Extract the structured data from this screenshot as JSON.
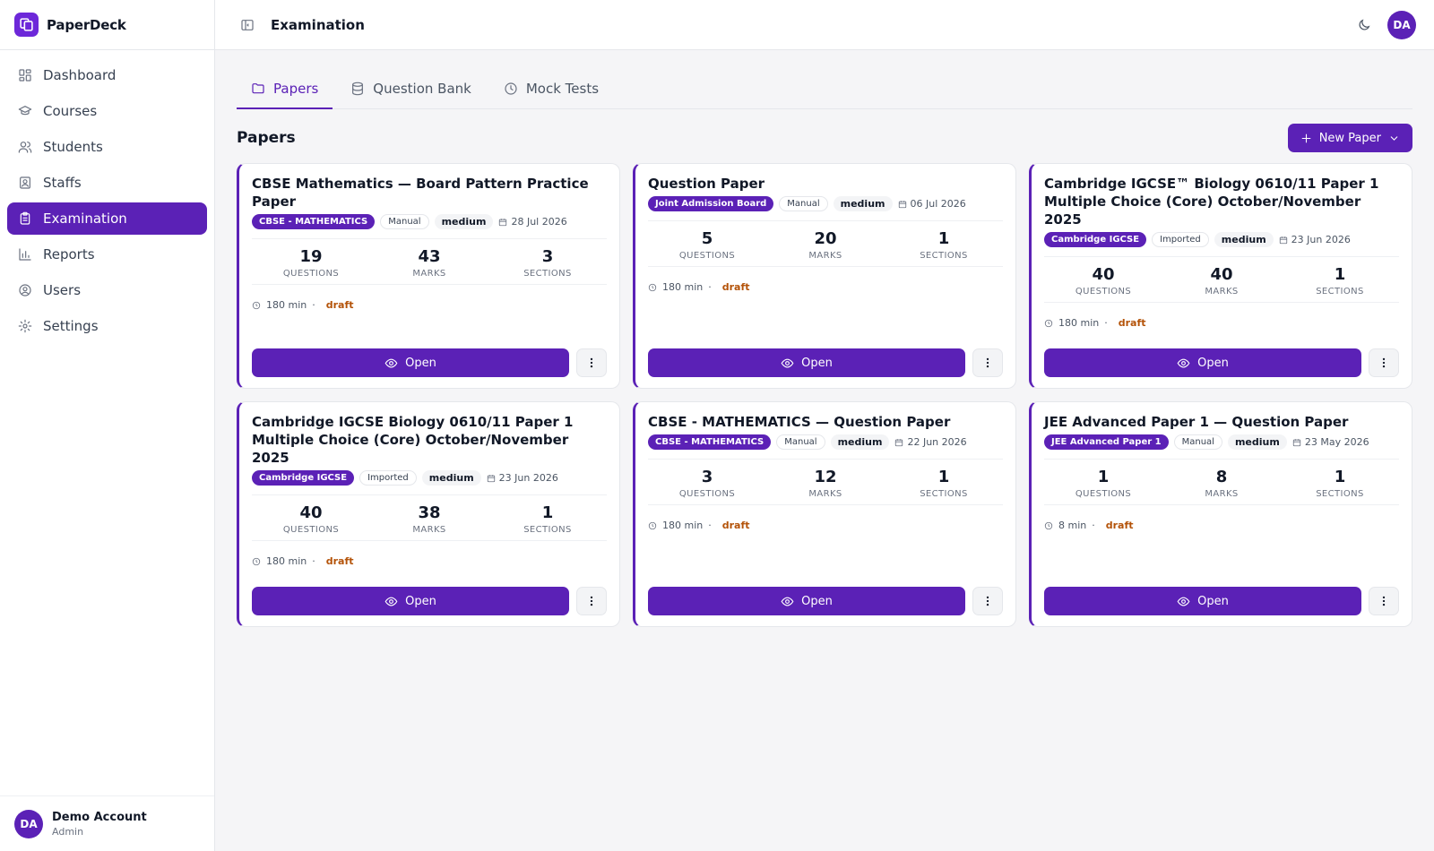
{
  "app": {
    "name": "PaperDeck"
  },
  "sidebar": {
    "items": [
      {
        "label": "Dashboard",
        "icon": "dashboard-icon",
        "active": false
      },
      {
        "label": "Courses",
        "icon": "graduation-cap-icon",
        "active": false
      },
      {
        "label": "Students",
        "icon": "users-icon",
        "active": false
      },
      {
        "label": "Staffs",
        "icon": "badge-icon",
        "active": false
      },
      {
        "label": "Examination",
        "icon": "clipboard-icon",
        "active": true
      },
      {
        "label": "Reports",
        "icon": "bar-chart-icon",
        "active": false
      },
      {
        "label": "Users",
        "icon": "user-circle-icon",
        "active": false
      },
      {
        "label": "Settings",
        "icon": "gear-icon",
        "active": false
      }
    ],
    "account": {
      "initials": "DA",
      "name": "Demo Account",
      "role": "Admin"
    }
  },
  "topbar": {
    "title": "Examination",
    "avatar_initials": "DA"
  },
  "tabs": [
    {
      "label": "Papers",
      "icon": "folder-icon",
      "active": true
    },
    {
      "label": "Question Bank",
      "icon": "database-icon",
      "active": false
    },
    {
      "label": "Mock Tests",
      "icon": "clock-icon",
      "active": false
    }
  ],
  "papers_section": {
    "title": "Papers",
    "new_button": "New Paper"
  },
  "stat_labels": {
    "questions": "QUESTIONS",
    "marks": "MARKS",
    "sections": "SECTIONS"
  },
  "papers": [
    {
      "title": "CBSE Mathematics — Board Pattern Practice Paper",
      "course": "CBSE - MATHEMATICS",
      "source": "Manual",
      "difficulty": "medium",
      "date": "28 Jul 2026",
      "questions": "19",
      "marks": "43",
      "sections": "3",
      "duration": "180 min",
      "status": "draft",
      "open_label": "Open"
    },
    {
      "title": "Question Paper",
      "course": "Joint Admission Board",
      "source": "Manual",
      "difficulty": "medium",
      "date": "06 Jul 2026",
      "questions": "5",
      "marks": "20",
      "sections": "1",
      "duration": "180 min",
      "status": "draft",
      "open_label": "Open"
    },
    {
      "title": "Cambridge IGCSE™ Biology 0610/11 Paper 1 Multiple Choice (Core) October/November 2025",
      "course": "Cambridge IGCSE",
      "source": "Imported",
      "difficulty": "medium",
      "date": "23 Jun 2026",
      "questions": "40",
      "marks": "40",
      "sections": "1",
      "duration": "180 min",
      "status": "draft",
      "open_label": "Open"
    },
    {
      "title": "Cambridge IGCSE Biology 0610/11 Paper 1 Multiple Choice (Core) October/November 2025",
      "course": "Cambridge IGCSE",
      "source": "Imported",
      "difficulty": "medium",
      "date": "23 Jun 2026",
      "questions": "40",
      "marks": "38",
      "sections": "1",
      "duration": "180 min",
      "status": "draft",
      "open_label": "Open"
    },
    {
      "title": "CBSE - MATHEMATICS — Question Paper",
      "course": "CBSE - MATHEMATICS",
      "source": "Manual",
      "difficulty": "medium",
      "date": "22 Jun 2026",
      "questions": "3",
      "marks": "12",
      "sections": "1",
      "duration": "180 min",
      "status": "draft",
      "open_label": "Open"
    },
    {
      "title": "JEE Advanced Paper 1 — Question Paper",
      "course": "JEE Advanced Paper 1",
      "source": "Manual",
      "difficulty": "medium",
      "date": "23 May 2026",
      "questions": "1",
      "marks": "8",
      "sections": "1",
      "duration": "8 min",
      "status": "draft",
      "open_label": "Open"
    }
  ],
  "colors": {
    "accent": "#5b21b6",
    "draft": "#b45309"
  }
}
